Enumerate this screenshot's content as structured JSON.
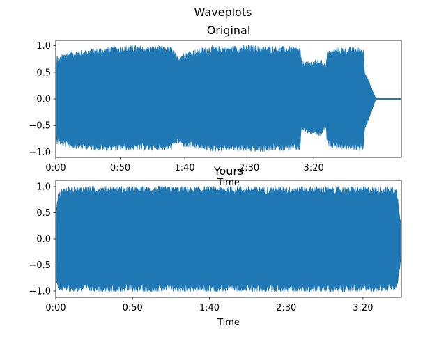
{
  "figure": {
    "suptitle": "Waveplots"
  },
  "chart_data": [
    {
      "type": "area",
      "title": "Original",
      "xlabel": "Time",
      "ylabel": "",
      "xlim": [
        0,
        268
      ],
      "ylim": [
        -1.1,
        1.1
      ],
      "xticks": [
        0,
        50,
        100,
        150,
        200
      ],
      "xtick_labels": [
        "0:00",
        "0:50",
        "1:40",
        "2:30",
        "3:20"
      ],
      "yticks": [
        -1.0,
        -0.5,
        0.0,
        0.5,
        1.0
      ],
      "ytick_labels": [
        "−1.0",
        "−0.5",
        "0.0",
        "0.5",
        "1.0"
      ],
      "grid": false,
      "color": "#1f77b4",
      "series": [
        {
          "name": "amplitude envelope",
          "time": [
            0,
            1,
            2,
            5,
            10,
            20,
            30,
            40,
            50,
            60,
            70,
            80,
            90,
            94.5,
            95.5,
            100,
            110,
            120,
            130,
            140,
            150,
            160,
            170,
            180,
            189.5,
            190.5,
            195,
            205,
            209.5,
            210.5,
            220,
            230,
            238.5,
            239.5,
            248,
            249,
            268
          ],
          "upper": [
            0.55,
            0.85,
            0.75,
            0.85,
            0.9,
            0.92,
            0.96,
            0.98,
            1.0,
            1.02,
            1.0,
            1.0,
            0.98,
            0.8,
            0.82,
            0.9,
            0.95,
            1.0,
            1.0,
            1.01,
            1.02,
            1.0,
            1.0,
            1.0,
            0.98,
            0.72,
            0.7,
            0.75,
            0.68,
            0.9,
            0.98,
            0.98,
            0.97,
            0.55,
            0.02,
            0.01,
            0.01
          ],
          "lower": [
            -0.5,
            -0.88,
            -0.85,
            -0.9,
            -0.92,
            -0.95,
            -0.97,
            -0.98,
            -0.98,
            -0.98,
            -0.98,
            -0.97,
            -0.97,
            -0.82,
            -0.85,
            -0.92,
            -0.95,
            -1.0,
            -0.98,
            -0.98,
            -1.0,
            -1.01,
            -0.98,
            -0.98,
            -0.98,
            -0.58,
            -0.65,
            -0.72,
            -0.55,
            -0.9,
            -0.95,
            -0.97,
            -0.98,
            -0.62,
            -0.02,
            -0.01,
            -0.01
          ]
        }
      ]
    },
    {
      "type": "area",
      "title": "Yours",
      "xlabel": "Time",
      "ylabel": "",
      "xlim": [
        0,
        225
      ],
      "ylim": [
        -1.12,
        1.12
      ],
      "xticks": [
        0,
        50,
        100,
        150,
        200
      ],
      "xtick_labels": [
        "0:00",
        "0:50",
        "1:40",
        "2:30",
        "3:20"
      ],
      "yticks": [
        -1.0,
        -0.5,
        0.0,
        0.5,
        1.0
      ],
      "ytick_labels": [
        "−1.0",
        "−0.5",
        "0.0",
        "0.5",
        "1.0"
      ],
      "grid": false,
      "color": "#1f77b4",
      "series": [
        {
          "name": "amplitude envelope",
          "time": [
            0,
            0.5,
            1.5,
            3,
            5,
            20,
            50,
            100,
            150,
            200,
            220,
            222,
            223.5,
            225
          ],
          "upper": [
            0.2,
            0.6,
            0.88,
            0.92,
            1.0,
            1.02,
            1.01,
            1.01,
            1.01,
            1.01,
            1.0,
            0.96,
            0.6,
            0.2
          ],
          "lower": [
            -0.3,
            -0.85,
            -0.98,
            -1.0,
            -1.02,
            -1.02,
            -1.02,
            -1.02,
            -1.02,
            -1.02,
            -1.0,
            -0.98,
            -0.7,
            -0.3
          ]
        }
      ]
    }
  ]
}
